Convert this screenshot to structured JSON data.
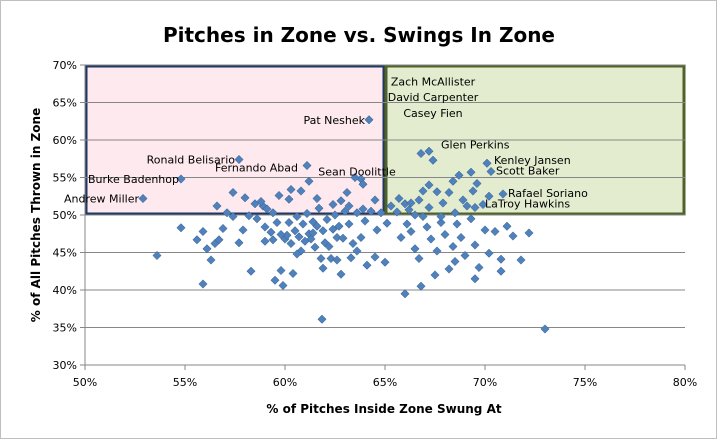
{
  "chart_data": {
    "type": "scatter",
    "title": "Pitches in Zone vs. Swings In Zone",
    "xlabel": "% of Pitches Inside Zone Swung At",
    "ylabel": "% of All Pitches Thrown in Zone",
    "xlim": [
      0.5,
      0.8
    ],
    "ylim": [
      0.3,
      0.7
    ],
    "x_ticks": [
      {
        "value": 0.5,
        "label": "50%"
      },
      {
        "value": 0.55,
        "label": "55%"
      },
      {
        "value": 0.6,
        "label": "60%"
      },
      {
        "value": 0.65,
        "label": "65%"
      },
      {
        "value": 0.7,
        "label": "70%"
      },
      {
        "value": 0.75,
        "label": "75%"
      },
      {
        "value": 0.8,
        "label": "80%"
      }
    ],
    "y_ticks": [
      {
        "value": 0.3,
        "label": "30%"
      },
      {
        "value": 0.35,
        "label": "35%"
      },
      {
        "value": 0.4,
        "label": "40%"
      },
      {
        "value": 0.45,
        "label": "45%"
      },
      {
        "value": 0.5,
        "label": "50%"
      },
      {
        "value": 0.55,
        "label": "55%"
      },
      {
        "value": 0.6,
        "label": "60%"
      },
      {
        "value": 0.65,
        "label": "65%"
      },
      {
        "value": 0.7,
        "label": "70%"
      }
    ],
    "grid": "horizontal",
    "legend": "none",
    "marker_color": "#4f81bd",
    "regions": [
      {
        "x": [
          0.5,
          0.65
        ],
        "y": [
          0.5,
          0.7
        ],
        "fill": "#fde9ee",
        "stroke": "#1f3864"
      },
      {
        "x": [
          0.65,
          0.8
        ],
        "y": [
          0.5,
          0.7
        ],
        "fill": "#e3eccf",
        "stroke": "#4f6228"
      }
    ],
    "points": [
      [
        0.529,
        0.522
      ],
      [
        0.548,
        0.548
      ],
      [
        0.608,
        0.532
      ],
      [
        0.642,
        0.627
      ],
      [
        0.577,
        0.574
      ],
      [
        0.611,
        0.566
      ],
      [
        0.638,
        0.548
      ],
      [
        0.672,
        0.585
      ],
      [
        0.674,
        0.573
      ],
      [
        0.668,
        0.582
      ],
      [
        0.701,
        0.569
      ],
      [
        0.693,
        0.557
      ],
      [
        0.703,
        0.558
      ],
      [
        0.709,
        0.528
      ],
      [
        0.695,
        0.51
      ],
      [
        0.6185,
        0.361
      ],
      [
        0.73,
        0.348
      ],
      [
        0.536,
        0.446
      ],
      [
        0.559,
        0.408
      ],
      [
        0.548,
        0.483
      ],
      [
        0.556,
        0.467
      ],
      [
        0.561,
        0.455
      ],
      [
        0.563,
        0.44
      ],
      [
        0.565,
        0.462
      ],
      [
        0.567,
        0.467
      ],
      [
        0.559,
        0.478
      ],
      [
        0.569,
        0.482
      ],
      [
        0.574,
        0.498
      ],
      [
        0.577,
        0.463
      ],
      [
        0.579,
        0.48
      ],
      [
        0.583,
        0.425
      ],
      [
        0.586,
        0.495
      ],
      [
        0.589,
        0.512
      ],
      [
        0.59,
        0.484
      ],
      [
        0.591,
        0.508
      ],
      [
        0.593,
        0.477
      ],
      [
        0.594,
        0.503
      ],
      [
        0.595,
        0.413
      ],
      [
        0.596,
        0.49
      ],
      [
        0.598,
        0.426
      ],
      [
        0.599,
        0.406
      ],
      [
        0.6,
        0.468
      ],
      [
        0.601,
        0.473
      ],
      [
        0.602,
        0.49
      ],
      [
        0.603,
        0.462
      ],
      [
        0.604,
        0.422
      ],
      [
        0.605,
        0.479
      ],
      [
        0.606,
        0.498
      ],
      [
        0.607,
        0.471
      ],
      [
        0.608,
        0.452
      ],
      [
        0.609,
        0.488
      ],
      [
        0.61,
        0.465
      ],
      [
        0.611,
        0.502
      ],
      [
        0.612,
        0.475
      ],
      [
        0.613,
        0.468
      ],
      [
        0.614,
        0.491
      ],
      [
        0.615,
        0.457
      ],
      [
        0.616,
        0.485
      ],
      [
        0.617,
        0.509
      ],
      [
        0.618,
        0.442
      ],
      [
        0.619,
        0.479
      ],
      [
        0.62,
        0.463
      ],
      [
        0.621,
        0.494
      ],
      [
        0.622,
        0.458
      ],
      [
        0.623,
        0.442
      ],
      [
        0.624,
        0.481
      ],
      [
        0.625,
        0.5
      ],
      [
        0.626,
        0.47
      ],
      [
        0.627,
        0.485
      ],
      [
        0.628,
        0.421
      ],
      [
        0.629,
        0.469
      ],
      [
        0.63,
        0.505
      ],
      [
        0.632,
        0.488
      ],
      [
        0.633,
        0.443
      ],
      [
        0.634,
        0.462
      ],
      [
        0.636,
        0.503
      ],
      [
        0.638,
        0.47
      ],
      [
        0.64,
        0.492
      ],
      [
        0.641,
        0.433
      ],
      [
        0.643,
        0.505
      ],
      [
        0.645,
        0.444
      ],
      [
        0.646,
        0.48
      ],
      [
        0.648,
        0.503
      ],
      [
        0.65,
        0.437
      ],
      [
        0.635,
        0.55
      ],
      [
        0.639,
        0.541
      ],
      [
        0.631,
        0.53
      ],
      [
        0.628,
        0.519
      ],
      [
        0.612,
        0.545
      ],
      [
        0.603,
        0.534
      ],
      [
        0.597,
        0.526
      ],
      [
        0.588,
        0.518
      ],
      [
        0.58,
        0.523
      ],
      [
        0.574,
        0.53
      ],
      [
        0.566,
        0.512
      ],
      [
        0.571,
        0.503
      ],
      [
        0.585,
        0.515
      ],
      [
        0.602,
        0.521
      ],
      [
        0.616,
        0.522
      ],
      [
        0.624,
        0.514
      ],
      [
        0.645,
        0.52
      ],
      [
        0.639,
        0.508
      ],
      [
        0.632,
        0.512
      ],
      [
        0.653,
        0.512
      ],
      [
        0.657,
        0.522
      ],
      [
        0.66,
        0.515
      ],
      [
        0.662,
        0.507
      ],
      [
        0.665,
        0.5
      ],
      [
        0.667,
        0.52
      ],
      [
        0.669,
        0.532
      ],
      [
        0.672,
        0.54
      ],
      [
        0.676,
        0.531
      ],
      [
        0.679,
        0.516
      ],
      [
        0.682,
        0.53
      ],
      [
        0.684,
        0.545
      ],
      [
        0.687,
        0.553
      ],
      [
        0.689,
        0.52
      ],
      [
        0.691,
        0.512
      ],
      [
        0.694,
        0.532
      ],
      [
        0.696,
        0.542
      ],
      [
        0.699,
        0.514
      ],
      [
        0.702,
        0.525
      ],
      [
        0.658,
        0.47
      ],
      [
        0.661,
        0.488
      ],
      [
        0.663,
        0.478
      ],
      [
        0.665,
        0.455
      ],
      [
        0.667,
        0.442
      ],
      [
        0.669,
        0.498
      ],
      [
        0.671,
        0.484
      ],
      [
        0.673,
        0.468
      ],
      [
        0.676,
        0.452
      ],
      [
        0.678,
        0.49
      ],
      [
        0.68,
        0.474
      ],
      [
        0.682,
        0.428
      ],
      [
        0.684,
        0.458
      ],
      [
        0.686,
        0.488
      ],
      [
        0.688,
        0.47
      ],
      [
        0.69,
        0.446
      ],
      [
        0.693,
        0.495
      ],
      [
        0.695,
        0.46
      ],
      [
        0.697,
        0.43
      ],
      [
        0.7,
        0.48
      ],
      [
        0.702,
        0.449
      ],
      [
        0.705,
        0.478
      ],
      [
        0.708,
        0.441
      ],
      [
        0.711,
        0.485
      ],
      [
        0.714,
        0.472
      ],
      [
        0.718,
        0.44
      ],
      [
        0.722,
        0.476
      ],
      [
        0.66,
        0.395
      ],
      [
        0.668,
        0.405
      ],
      [
        0.675,
        0.42
      ],
      [
        0.685,
        0.438
      ],
      [
        0.695,
        0.415
      ],
      [
        0.708,
        0.425
      ],
      [
        0.672,
        0.51
      ],
      [
        0.678,
        0.498
      ],
      [
        0.685,
        0.503
      ],
      [
        0.656,
        0.504
      ],
      [
        0.651,
        0.489
      ],
      [
        0.663,
        0.516
      ],
      [
        0.598,
        0.474
      ],
      [
        0.614,
        0.476
      ],
      [
        0.626,
        0.44
      ],
      [
        0.636,
        0.452
      ],
      [
        0.606,
        0.448
      ],
      [
        0.619,
        0.429
      ],
      [
        0.59,
        0.465
      ],
      [
        0.582,
        0.499
      ],
      [
        0.594,
        0.467
      ]
    ],
    "annotations": [
      {
        "text": "Pat Neshek",
        "x": 0.642,
        "y": 0.627,
        "anchor": "end",
        "dx": -4,
        "dy": 4
      },
      {
        "text": "Ronald Belisario",
        "x": 0.577,
        "y": 0.574,
        "anchor": "end",
        "dx": -4,
        "dy": 4
      },
      {
        "text": "Fernando Abad",
        "x": 0.609,
        "y": 0.566,
        "anchor": "end",
        "dx": -5,
        "dy": 6
      },
      {
        "text": "Burke Badenhop",
        "x": 0.548,
        "y": 0.548,
        "anchor": "end",
        "dx": -2,
        "dy": 4
      },
      {
        "text": "Andrew Miller",
        "x": 0.529,
        "y": 0.522,
        "anchor": "end",
        "dx": -4,
        "dy": 4
      },
      {
        "text": "Sean Doolittle",
        "x": 0.636,
        "y": 0.557,
        "anchor": "middle",
        "dx": 0,
        "dy": 3
      },
      {
        "text": "Zach McAllister",
        "x": 0.674,
        "y": 0.673,
        "anchor": "middle",
        "dx": 0,
        "dy": 0
      },
      {
        "text": "David Carpenter",
        "x": 0.674,
        "y": 0.652,
        "anchor": "middle",
        "dx": 0,
        "dy": 0
      },
      {
        "text": "Casey Fien",
        "x": 0.674,
        "y": 0.631,
        "anchor": "middle",
        "dx": 0,
        "dy": 0
      },
      {
        "text": "Glen Perkins",
        "x": 0.676,
        "y": 0.589,
        "anchor": "start",
        "dx": 4,
        "dy": 0
      },
      {
        "text": "Kenley Jansen",
        "x": 0.702,
        "y": 0.571,
        "anchor": "start",
        "dx": 5,
        "dy": 2
      },
      {
        "text": "Scott Baker",
        "x": 0.703,
        "y": 0.558,
        "anchor": "start",
        "dx": 5,
        "dy": 3
      },
      {
        "text": "Rafael Soriano",
        "x": 0.709,
        "y": 0.528,
        "anchor": "start",
        "dx": 5,
        "dy": 3
      },
      {
        "text": "LaTroy Hawkins",
        "x": 0.695,
        "y": 0.51,
        "anchor": "start",
        "dx": 10,
        "dy": 0
      }
    ]
  }
}
